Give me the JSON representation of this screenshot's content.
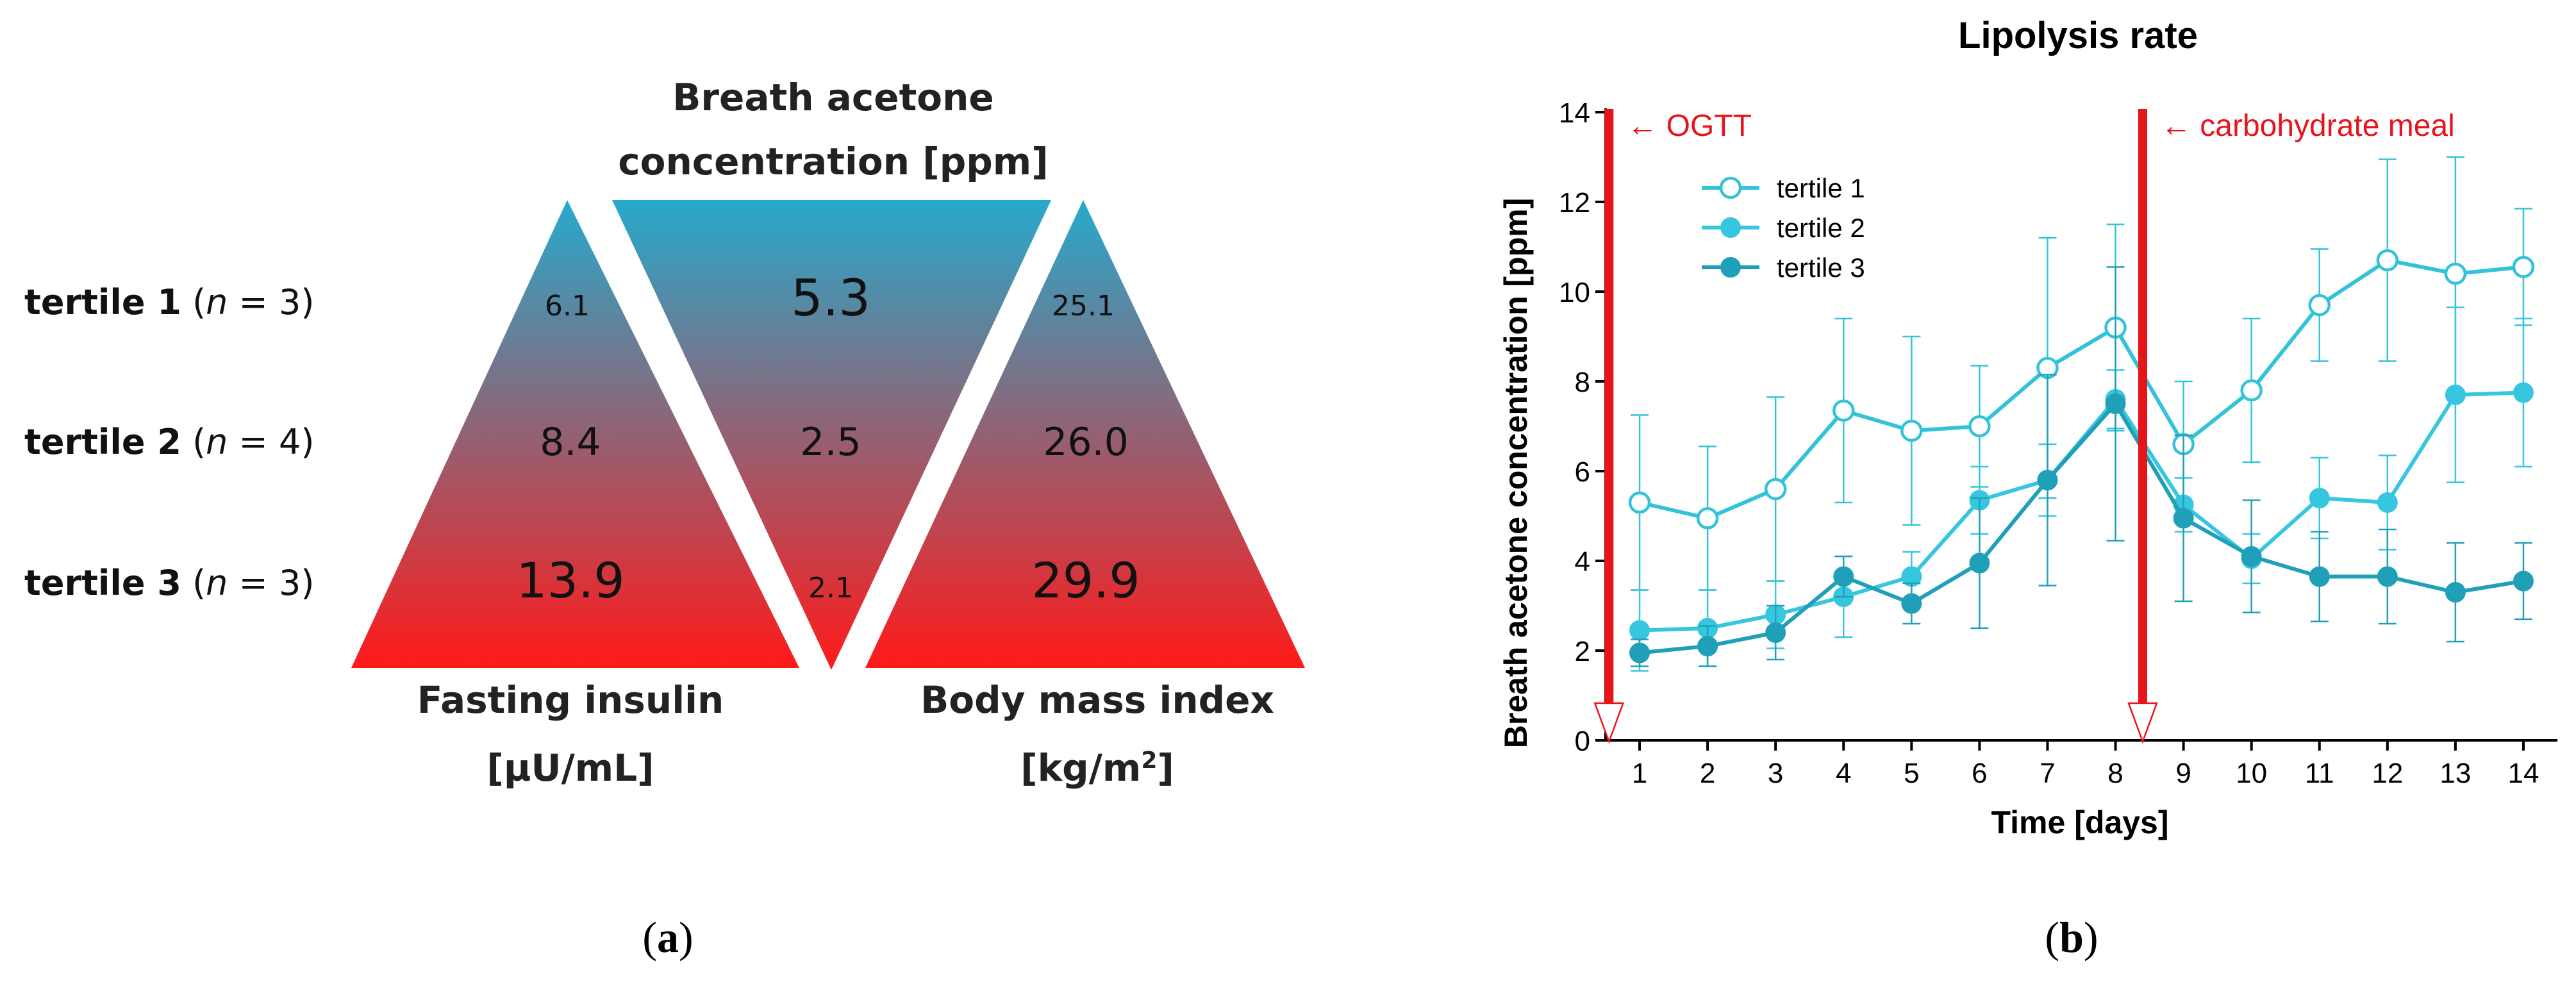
{
  "panel_a": {
    "label": "a",
    "tertiles": [
      {
        "name": "tertile 1",
        "n": "n",
        "count": "= 3)"
      },
      {
        "name": "tertile 2",
        "n": "n",
        "count": "= 4)"
      },
      {
        "name": "tertile 3",
        "n": "n",
        "count": "= 3)"
      }
    ],
    "acetone_title_1": "Breath acetone",
    "acetone_title_2": "concentration [ppm]",
    "insulin_title_1": "Fasting insulin",
    "insulin_title_2": "[µU/mL]",
    "bmi_title_1": "Body mass index",
    "bmi_title_2": "[kg/m",
    "bmi_title_sup": "2",
    "bmi_title_close": "]",
    "insulin_values": [
      "6.1",
      "8.4",
      "13.9"
    ],
    "acetone_values": [
      "5.3",
      "2.5",
      "2.1"
    ],
    "bmi_values": [
      "25.1",
      "26.0",
      "29.9"
    ],
    "colors": {
      "top": "#27a9cc",
      "bottom": "#ff1a1a"
    }
  },
  "chart_data": {
    "type": "line",
    "panel_label": "b",
    "title": "Lipolysis rate",
    "xlabel": "Time [days]",
    "ylabel": "Breath acetone concentration [ppm]",
    "x": [
      1,
      2,
      3,
      4,
      5,
      6,
      7,
      8,
      9,
      10,
      11,
      12,
      13,
      14
    ],
    "xlim": [
      0.5,
      14.5
    ],
    "ylim": [
      0,
      14
    ],
    "yticks": [
      0,
      2,
      4,
      6,
      8,
      10,
      12,
      14
    ],
    "series": [
      {
        "name": "tertile 1",
        "color": "#33c3d8",
        "marker": "open-circle",
        "values": [
          5.3,
          4.95,
          5.6,
          7.35,
          6.9,
          7.0,
          8.3,
          9.2,
          6.6,
          7.8,
          9.7,
          10.7,
          10.4,
          10.55
        ],
        "err": [
          1.95,
          1.6,
          2.05,
          2.05,
          2.1,
          1.35,
          2.9,
          2.3,
          1.4,
          1.6,
          1.25,
          2.25,
          2.6,
          1.3
        ]
      },
      {
        "name": "tertile 2",
        "color": "#36c6e0",
        "marker": "filled-circle",
        "values": [
          2.45,
          2.5,
          2.8,
          3.2,
          3.65,
          5.35,
          5.8,
          7.6,
          5.25,
          4.05,
          5.4,
          5.3,
          7.7,
          7.75
        ],
        "err": [
          0.9,
          0.85,
          0.75,
          0.9,
          0.55,
          0.75,
          0.8,
          0.65,
          0.6,
          0.55,
          0.9,
          1.05,
          1.95,
          1.65
        ]
      },
      {
        "name": "tertile 3",
        "color": "#1fa0b8",
        "marker": "filled-circle",
        "values": [
          1.95,
          2.1,
          2.4,
          3.65,
          3.05,
          3.95,
          5.8,
          7.5,
          4.95,
          4.1,
          3.65,
          3.65,
          3.3,
          3.55
        ],
        "err": [
          0.3,
          0.45,
          0.6,
          0.45,
          0.45,
          1.45,
          2.35,
          3.05,
          1.85,
          1.25,
          1.0,
          1.05,
          1.1,
          0.85
        ]
      }
    ],
    "annotations": [
      {
        "text": "← OGTT",
        "x": 0.55
      },
      {
        "text": "← carbohydrate meal",
        "x": 8.4
      }
    ],
    "annotation_color": "#e8141b"
  }
}
